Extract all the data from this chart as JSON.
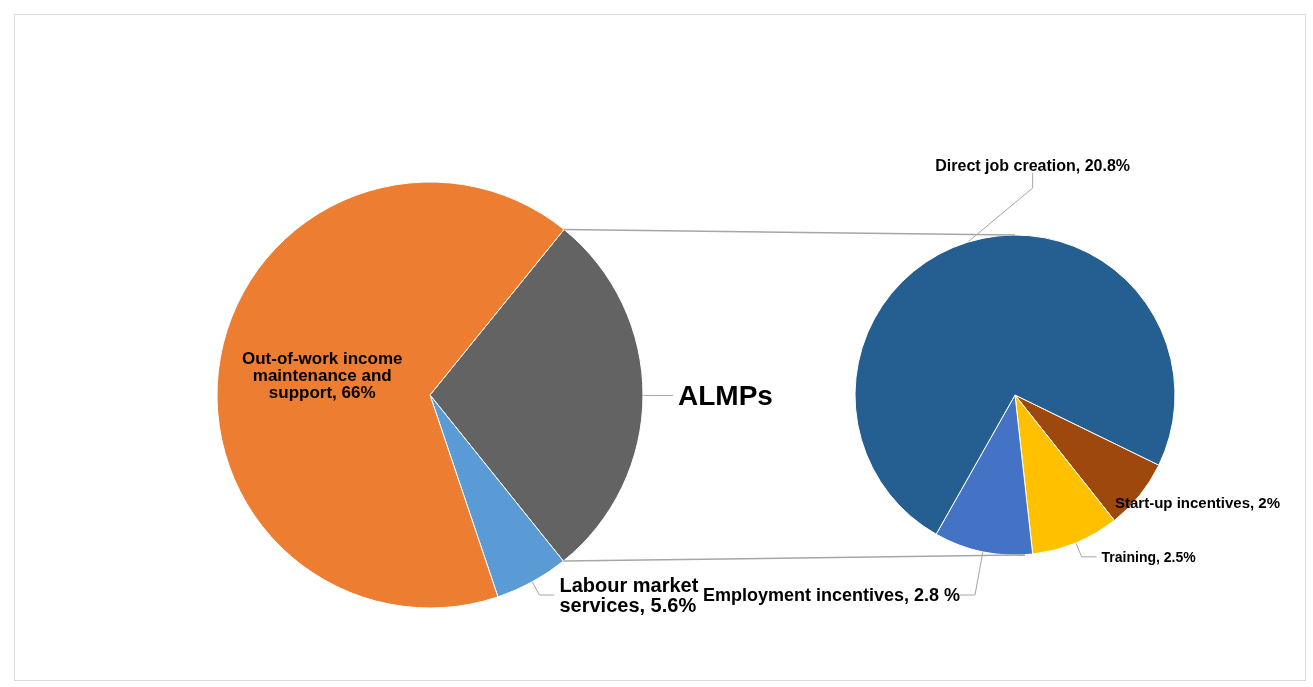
{
  "chart_data": [
    {
      "type": "pie",
      "categories": [
        "ALMPs",
        "Labour market services",
        "Out-of-work income maintenance and support"
      ],
      "values": [
        28.4,
        5.6,
        66
      ],
      "value_labels": [
        null,
        "5.6%",
        "66%"
      ],
      "colors": [
        "#636363",
        "#5b9bd5",
        "#ed7d31"
      ]
    },
    {
      "type": "pie",
      "categories": [
        "Start-up incentives",
        "Training",
        "Employment incentives",
        "Direct job creation"
      ],
      "values": [
        2,
        2.5,
        2.8,
        20.8
      ],
      "value_labels": [
        "2%",
        "2.5%",
        "2.8 %",
        "20.8%"
      ],
      "colors": [
        "#9e480e",
        "#ffc000",
        "#4472c4",
        "#255e91"
      ]
    }
  ]
}
